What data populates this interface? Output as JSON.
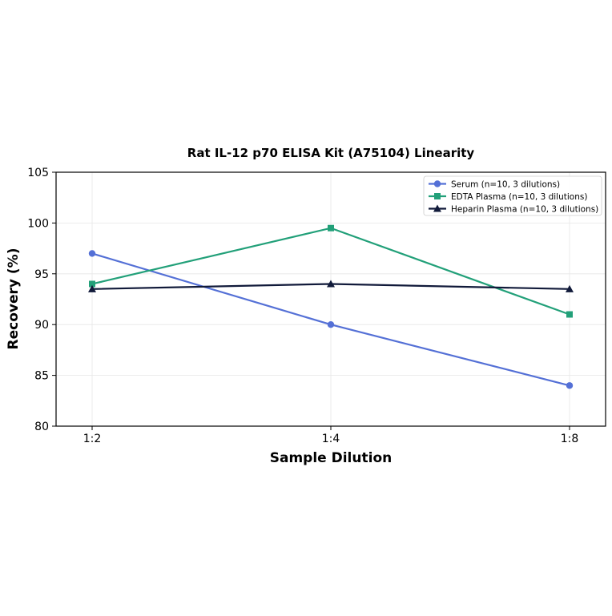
{
  "chart_data": {
    "type": "line",
    "title": "Rat IL-12 p70 ELISA Kit (A75104) Linearity",
    "xlabel": "Sample Dilution",
    "ylabel": "Recovery (%)",
    "categories": [
      "1:2",
      "1:4",
      "1:8"
    ],
    "ylim": [
      80,
      105
    ],
    "yticks": [
      80,
      85,
      90,
      95,
      100,
      105
    ],
    "grid": true,
    "legend_position": "top-right",
    "series": [
      {
        "name": "Serum (n=10, 3 dilutions)",
        "values": [
          97,
          90,
          84
        ],
        "color": "#5470d6",
        "marker": "circle"
      },
      {
        "name": "EDTA Plasma (n=10, 3 dilutions)",
        "values": [
          94,
          99.5,
          91
        ],
        "color": "#22a079",
        "marker": "square"
      },
      {
        "name": "Heparin Plasma (n=10, 3 dilutions)",
        "values": [
          93.5,
          94,
          93.5
        ],
        "color": "#111a3a",
        "marker": "triangle"
      }
    ]
  }
}
